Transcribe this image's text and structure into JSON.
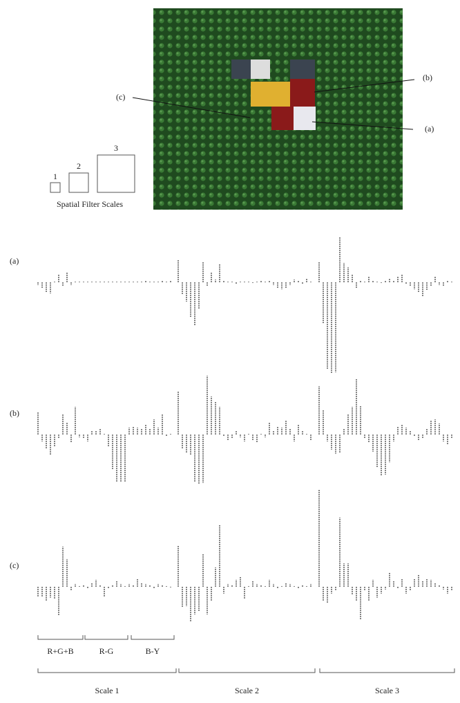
{
  "figure": {
    "photo_labels": [
      "(a)",
      "(b)",
      "(c)"
    ],
    "filter_scales": {
      "labels": [
        "1",
        "2",
        "3"
      ],
      "caption": "Spatial Filter Scales"
    }
  },
  "chart_data": [
    {
      "type": "bar",
      "label": "(a)",
      "values": [
        -4,
        -8,
        -14,
        -16,
        0,
        12,
        -6,
        14,
        -4,
        0,
        0,
        0,
        0,
        0,
        1,
        0,
        1,
        0,
        1,
        0,
        0,
        1,
        1,
        0,
        1,
        0,
        2,
        1,
        0,
        1,
        2,
        0,
        3,
        32,
        -18,
        -28,
        -50,
        -62,
        -38,
        30,
        -6,
        14,
        4,
        26,
        2,
        1,
        0,
        -2,
        0,
        1,
        0,
        -1,
        0,
        2,
        0,
        3,
        -4,
        -8,
        -10,
        -8,
        -4,
        4,
        2,
        -2,
        5,
        1,
        30,
        -60,
        -125,
        -132,
        -130,
        66,
        28,
        22,
        12,
        -8,
        3,
        0,
        8,
        2,
        0,
        -1,
        2,
        6,
        3,
        8,
        12,
        -3,
        -5,
        -10,
        -14,
        -20,
        -12,
        -5,
        8,
        -4,
        -6,
        3,
        0
      ]
    },
    {
      "type": "bar",
      "label": "(b)",
      "values": [
        32,
        -10,
        -20,
        -30,
        -18,
        -5,
        30,
        18,
        -12,
        40,
        -4,
        -6,
        -10,
        5,
        6,
        8,
        0,
        -18,
        -50,
        -68,
        -68,
        -68,
        10,
        12,
        10,
        8,
        15,
        8,
        22,
        10,
        30,
        -2,
        0,
        62,
        -20,
        -26,
        -30,
        -68,
        -72,
        -70,
        85,
        55,
        48,
        40,
        -2,
        -8,
        -6,
        5,
        -4,
        -10,
        0,
        -8,
        -12,
        0,
        -4,
        18,
        6,
        12,
        10,
        20,
        8,
        -10,
        14,
        6,
        0,
        -8,
        70,
        35,
        -10,
        -22,
        -28,
        -26,
        8,
        30,
        40,
        80,
        42,
        -5,
        -12,
        -25,
        -48,
        -60,
        -58,
        -40,
        -10,
        12,
        15,
        10,
        6,
        -2,
        -8,
        -6,
        8,
        20,
        22,
        16,
        -10,
        -15,
        -6
      ]
    },
    {
      "type": "bar",
      "label": "(c)",
      "values": [
        -14,
        -14,
        -20,
        -16,
        -18,
        -42,
        58,
        40,
        -6,
        4,
        0,
        2,
        -2,
        6,
        10,
        2,
        -14,
        -2,
        2,
        8,
        4,
        0,
        4,
        2,
        12,
        6,
        4,
        2,
        -3,
        4,
        2,
        0,
        -1,
        60,
        -30,
        -28,
        -50,
        -40,
        -36,
        48,
        -40,
        -20,
        28,
        90,
        -10,
        4,
        2,
        10,
        14,
        -18,
        0,
        8,
        4,
        2,
        0,
        10,
        4,
        -2,
        0,
        6,
        4,
        0,
        -2,
        2,
        0,
        4,
        140,
        -20,
        -24,
        -10,
        -6,
        100,
        34,
        34,
        -12,
        -20,
        -48,
        -6,
        -20,
        10,
        -16,
        -10,
        -4,
        20,
        8,
        -2,
        12,
        -10,
        -6,
        12,
        18,
        8,
        12,
        10,
        6,
        2,
        -4,
        -10,
        -6
      ]
    }
  ],
  "channel_labels": [
    "R+G+B",
    "R-G",
    "B-Y"
  ],
  "scale_labels": [
    "Scale 1",
    "Scale 2",
    "Scale 3"
  ]
}
